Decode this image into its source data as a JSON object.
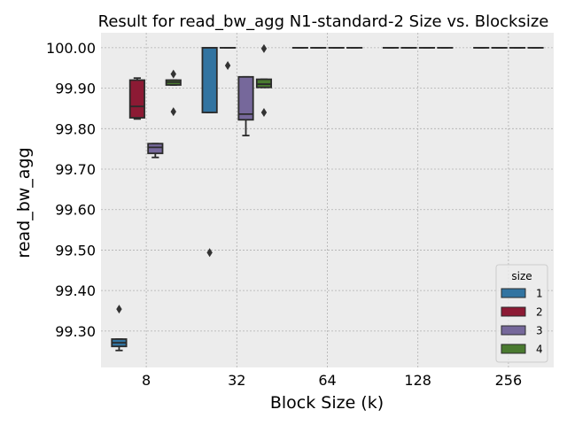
{
  "chart_data": {
    "type": "box",
    "title": "Result for read_bw_agg N1-standard-2 Size vs. Blocksize",
    "xlabel": "Block Size (k)",
    "ylabel": "read_bw_agg",
    "categories": [
      "8",
      "32",
      "64",
      "128",
      "256"
    ],
    "y_tick_labels": [
      "99.30",
      "99.40",
      "99.50",
      "99.60",
      "99.70",
      "99.80",
      "99.90",
      "100.00"
    ],
    "ylim": [
      99.21,
      100.037
    ],
    "grid": true,
    "legend": {
      "title": "size",
      "position": "lower-right",
      "items": [
        {
          "label": "1",
          "color": "#3274a1"
        },
        {
          "label": "2",
          "color": "#8c1a34"
        },
        {
          "label": "3",
          "color": "#76689b"
        },
        {
          "label": "4",
          "color": "#4a7a30"
        }
      ]
    },
    "series": [
      {
        "name": "1",
        "color": "#3274a1",
        "boxes": [
          {
            "category": "8",
            "q1": 99.262,
            "median": 99.271,
            "q3": 99.28,
            "whisker_low": 99.252,
            "whisker_high": 99.28,
            "outliers": [
              99.354
            ]
          },
          {
            "category": "32",
            "q1": 99.84,
            "median": 100.0,
            "q3": 100.0,
            "whisker_low": 99.84,
            "whisker_high": 100.0,
            "outliers": [
              99.494
            ]
          },
          {
            "category": "64",
            "q1": 100.0,
            "median": 100.0,
            "q3": 100.0,
            "whisker_low": 100.0,
            "whisker_high": 100.0,
            "outliers": []
          },
          {
            "category": "128",
            "q1": 100.0,
            "median": 100.0,
            "q3": 100.0,
            "whisker_low": 100.0,
            "whisker_high": 100.0,
            "outliers": []
          },
          {
            "category": "256",
            "q1": 100.0,
            "median": 100.0,
            "q3": 100.0,
            "whisker_low": 100.0,
            "whisker_high": 100.0,
            "outliers": []
          }
        ]
      },
      {
        "name": "2",
        "color": "#8c1a34",
        "boxes": [
          {
            "category": "8",
            "q1": 99.827,
            "median": 99.855,
            "q3": 99.92,
            "whisker_low": 99.824,
            "whisker_high": 99.925,
            "outliers": []
          },
          {
            "category": "32",
            "q1": 100.0,
            "median": 100.0,
            "q3": 100.0,
            "whisker_low": 100.0,
            "whisker_high": 100.0,
            "outliers": [
              99.956
            ]
          },
          {
            "category": "64",
            "q1": 100.0,
            "median": 100.0,
            "q3": 100.0,
            "whisker_low": 100.0,
            "whisker_high": 100.0,
            "outliers": []
          },
          {
            "category": "128",
            "q1": 100.0,
            "median": 100.0,
            "q3": 100.0,
            "whisker_low": 100.0,
            "whisker_high": 100.0,
            "outliers": []
          },
          {
            "category": "256",
            "q1": 100.0,
            "median": 100.0,
            "q3": 100.0,
            "whisker_low": 100.0,
            "whisker_high": 100.0,
            "outliers": []
          }
        ]
      },
      {
        "name": "3",
        "color": "#76689b",
        "boxes": [
          {
            "category": "8",
            "q1": 99.739,
            "median": 99.754,
            "q3": 99.763,
            "whisker_low": 99.729,
            "whisker_high": 99.763,
            "outliers": []
          },
          {
            "category": "32",
            "q1": 99.822,
            "median": 99.836,
            "q3": 99.928,
            "whisker_low": 99.783,
            "whisker_high": 99.928,
            "outliers": []
          },
          {
            "category": "64",
            "q1": 100.0,
            "median": 100.0,
            "q3": 100.0,
            "whisker_low": 100.0,
            "whisker_high": 100.0,
            "outliers": []
          },
          {
            "category": "128",
            "q1": 100.0,
            "median": 100.0,
            "q3": 100.0,
            "whisker_low": 100.0,
            "whisker_high": 100.0,
            "outliers": []
          },
          {
            "category": "256",
            "q1": 100.0,
            "median": 100.0,
            "q3": 100.0,
            "whisker_low": 100.0,
            "whisker_high": 100.0,
            "outliers": []
          }
        ]
      },
      {
        "name": "4",
        "color": "#4a7a30",
        "boxes": [
          {
            "category": "8",
            "q1": 99.908,
            "median": 99.915,
            "q3": 99.92,
            "whisker_low": 99.908,
            "whisker_high": 99.92,
            "outliers": [
              99.935,
              99.842
            ]
          },
          {
            "category": "32",
            "q1": 99.902,
            "median": 99.91,
            "q3": 99.922,
            "whisker_low": 99.902,
            "whisker_high": 99.922,
            "outliers": [
              99.998,
              99.84
            ]
          },
          {
            "category": "64",
            "q1": 100.0,
            "median": 100.0,
            "q3": 100.0,
            "whisker_low": 100.0,
            "whisker_high": 100.0,
            "outliers": []
          },
          {
            "category": "128",
            "q1": 100.0,
            "median": 100.0,
            "q3": 100.0,
            "whisker_low": 100.0,
            "whisker_high": 100.0,
            "outliers": []
          },
          {
            "category": "256",
            "q1": 100.0,
            "median": 100.0,
            "q3": 100.0,
            "whisker_low": 100.0,
            "whisker_high": 100.0,
            "outliers": []
          }
        ]
      }
    ]
  }
}
